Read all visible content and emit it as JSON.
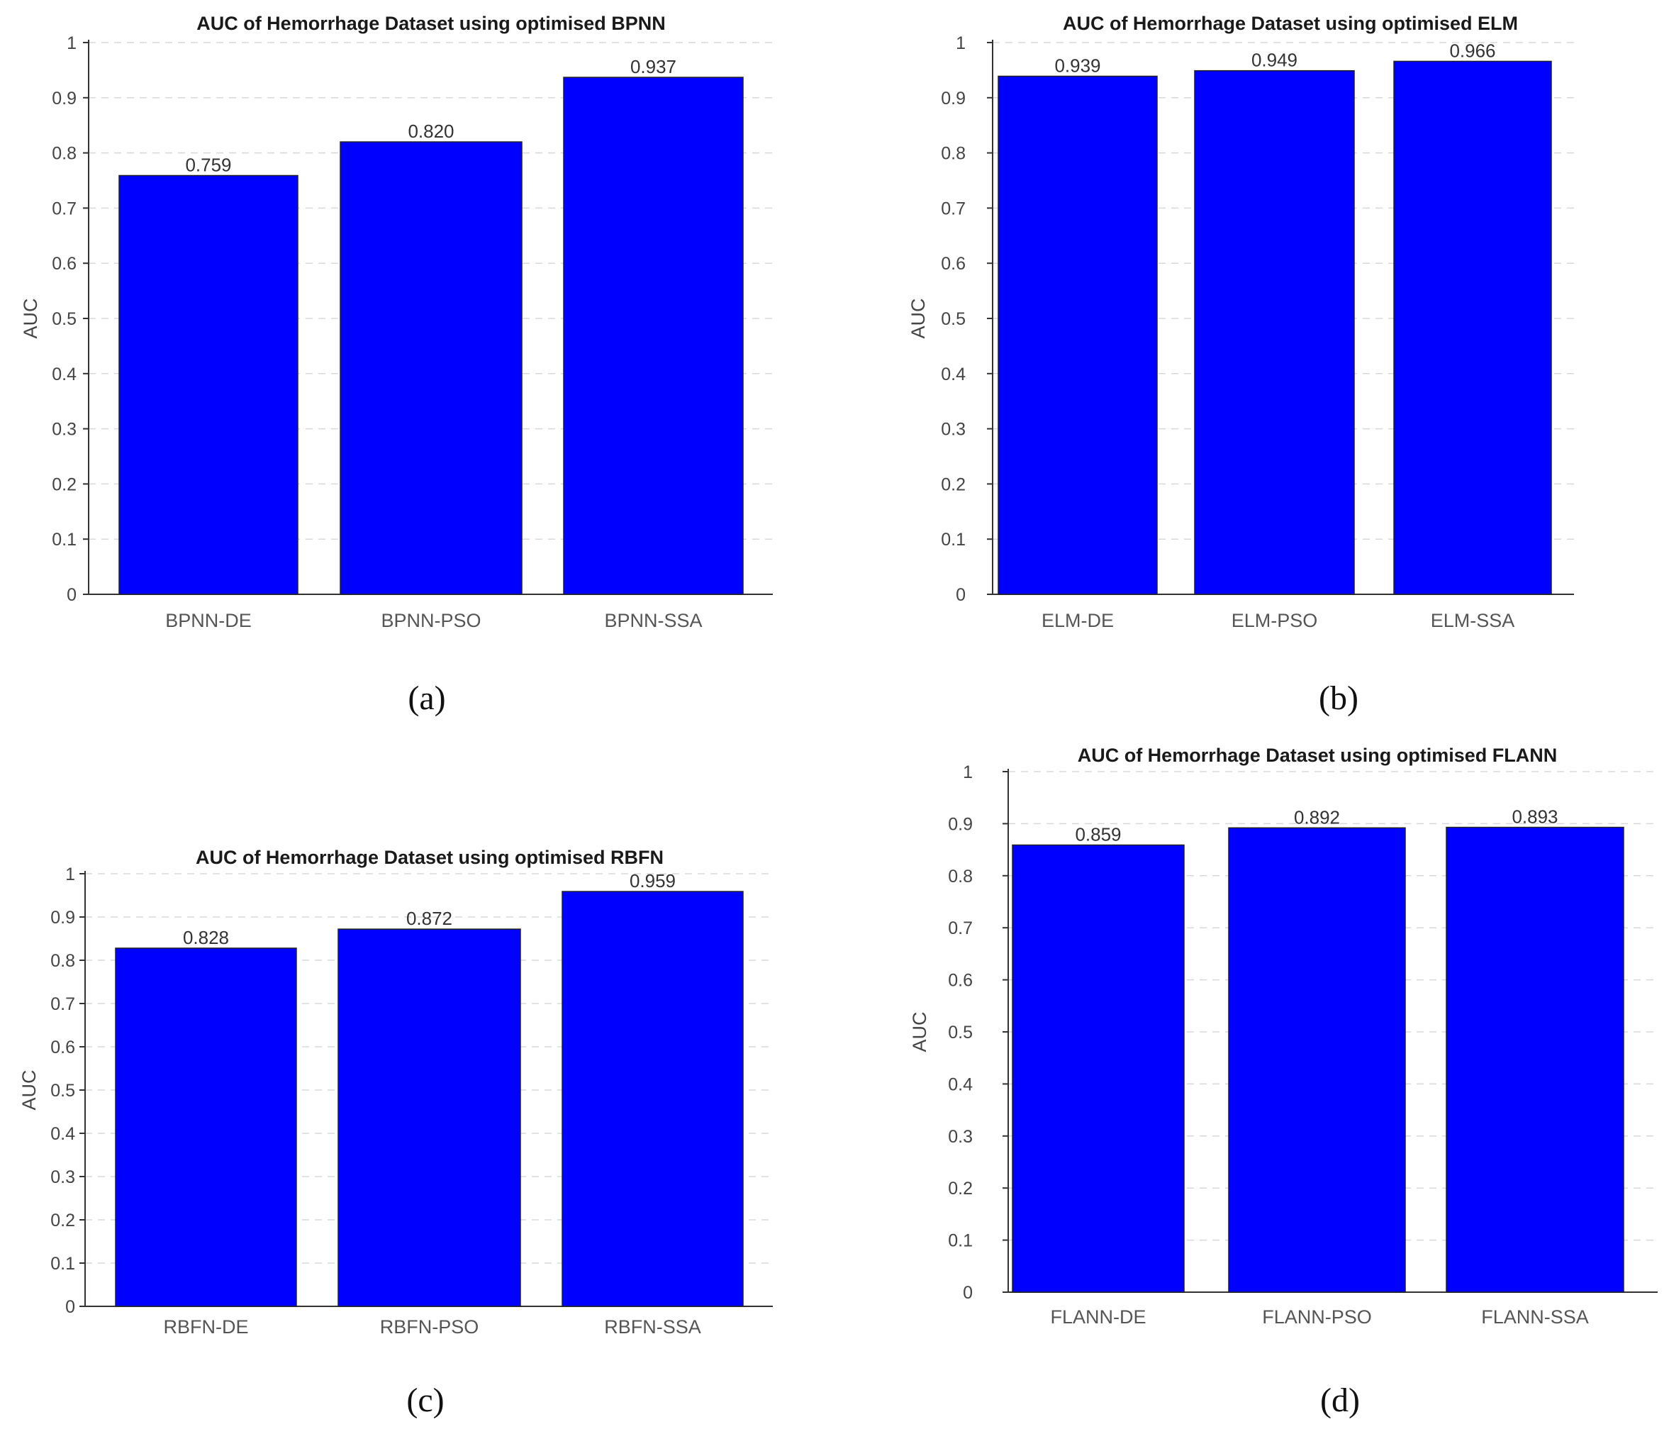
{
  "chart_data": [
    {
      "type": "bar",
      "title": "AUC of Hemorrhage Dataset using optimised BPNN",
      "categories": [
        "BPNN-DE",
        "BPNN-PSO",
        "BPNN-SSA"
      ],
      "values": [
        0.759,
        0.82,
        0.937
      ],
      "value_labels": [
        "0.759",
        "0.820",
        "0.937"
      ],
      "xlabel": "",
      "ylabel": "AUC",
      "ylim": [
        0,
        1
      ],
      "yticks": [
        "0",
        "0.1",
        "0.2",
        "0.3",
        "0.4",
        "0.5",
        "0.6",
        "0.7",
        "0.8",
        "0.9",
        "1"
      ],
      "grid": true,
      "bar_color": "#0000ff",
      "caption": "(a)"
    },
    {
      "type": "bar",
      "title": "AUC of Hemorrhage Dataset using optimised ELM",
      "categories": [
        "ELM-DE",
        "ELM-PSO",
        "ELM-SSA"
      ],
      "values": [
        0.939,
        0.949,
        0.966
      ],
      "value_labels": [
        "0.939",
        "0.949",
        "0.966"
      ],
      "xlabel": "",
      "ylabel": "AUC",
      "ylim": [
        0,
        1
      ],
      "yticks": [
        "0",
        "0.1",
        "0.2",
        "0.3",
        "0.4",
        "0.5",
        "0.6",
        "0.7",
        "0.8",
        "0.9",
        "1"
      ],
      "grid": true,
      "bar_color": "#0000ff",
      "caption": "(b)"
    },
    {
      "type": "bar",
      "title": "AUC of Hemorrhage Dataset using optimised RBFN",
      "categories": [
        "RBFN-DE",
        "RBFN-PSO",
        "RBFN-SSA"
      ],
      "values": [
        0.828,
        0.872,
        0.959
      ],
      "value_labels": [
        "0.828",
        "0.872",
        "0.959"
      ],
      "xlabel": "",
      "ylabel": "AUC",
      "ylim": [
        0,
        1
      ],
      "yticks": [
        "0",
        "0.1",
        "0.2",
        "0.3",
        "0.4",
        "0.5",
        "0.6",
        "0.7",
        "0.8",
        "0.9",
        "1"
      ],
      "grid": true,
      "bar_color": "#0000ff",
      "caption": "(c)"
    },
    {
      "type": "bar",
      "title": "AUC of Hemorrhage Dataset using optimised FLANN",
      "categories": [
        "FLANN-DE",
        "FLANN-PSO",
        "FLANN-SSA"
      ],
      "values": [
        0.859,
        0.892,
        0.893
      ],
      "value_labels": [
        "0.859",
        "0.892",
        "0.893"
      ],
      "xlabel": "",
      "ylabel": "AUC",
      "ylim": [
        0,
        1
      ],
      "yticks": [
        "0",
        "0.1",
        "0.2",
        "0.3",
        "0.4",
        "0.5",
        "0.6",
        "0.7",
        "0.8",
        "0.9",
        "1"
      ],
      "grid": true,
      "bar_color": "#0000ff",
      "caption": "(d)"
    }
  ]
}
